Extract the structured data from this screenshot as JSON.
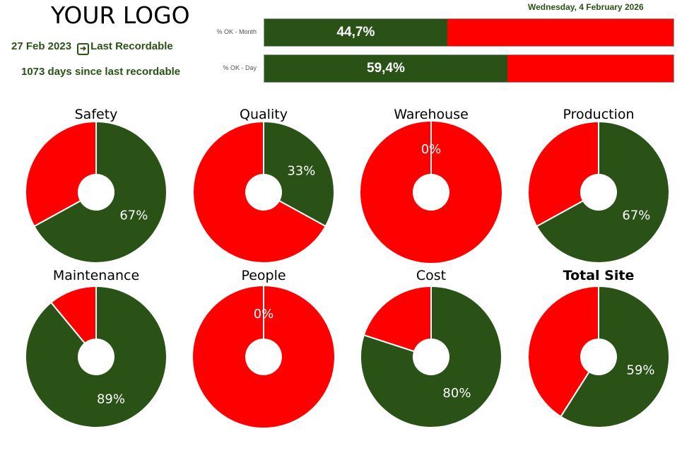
{
  "header": {
    "logo": "YOUR LOGO",
    "last_recordable_date": "27 Feb 2023",
    "last_recordable_label": "Last Recordable",
    "last_recordable_icon": "arrow-right-box-icon",
    "days_since": "1073 days  since last recordable",
    "current_date": "Wednesday, 4 February 2026"
  },
  "bars": [
    {
      "label": "% OK - Month",
      "value": 44.7,
      "text": "44,7%"
    },
    {
      "label": "% OK - Day",
      "value": 59.4,
      "text": "59,4%"
    }
  ],
  "colors": {
    "ok": "#2a5217",
    "nok": "#ff0000"
  },
  "chart_data": {
    "type": "pie",
    "variant": "donut",
    "charts": [
      {
        "title": "Safety",
        "value": 67,
        "label": "67%"
      },
      {
        "title": "Quality",
        "value": 33,
        "label": "33%"
      },
      {
        "title": "Warehouse",
        "value": 0,
        "label": "0%"
      },
      {
        "title": "Production",
        "value": 67,
        "label": "67%"
      },
      {
        "title": "Maintenance",
        "value": 89,
        "label": "89%"
      },
      {
        "title": "People",
        "value": 0,
        "label": "0%"
      },
      {
        "title": "Cost",
        "value": 80,
        "label": "80%"
      },
      {
        "title": "Total Site",
        "value": 59,
        "label": "59%",
        "bold": true
      }
    ]
  }
}
